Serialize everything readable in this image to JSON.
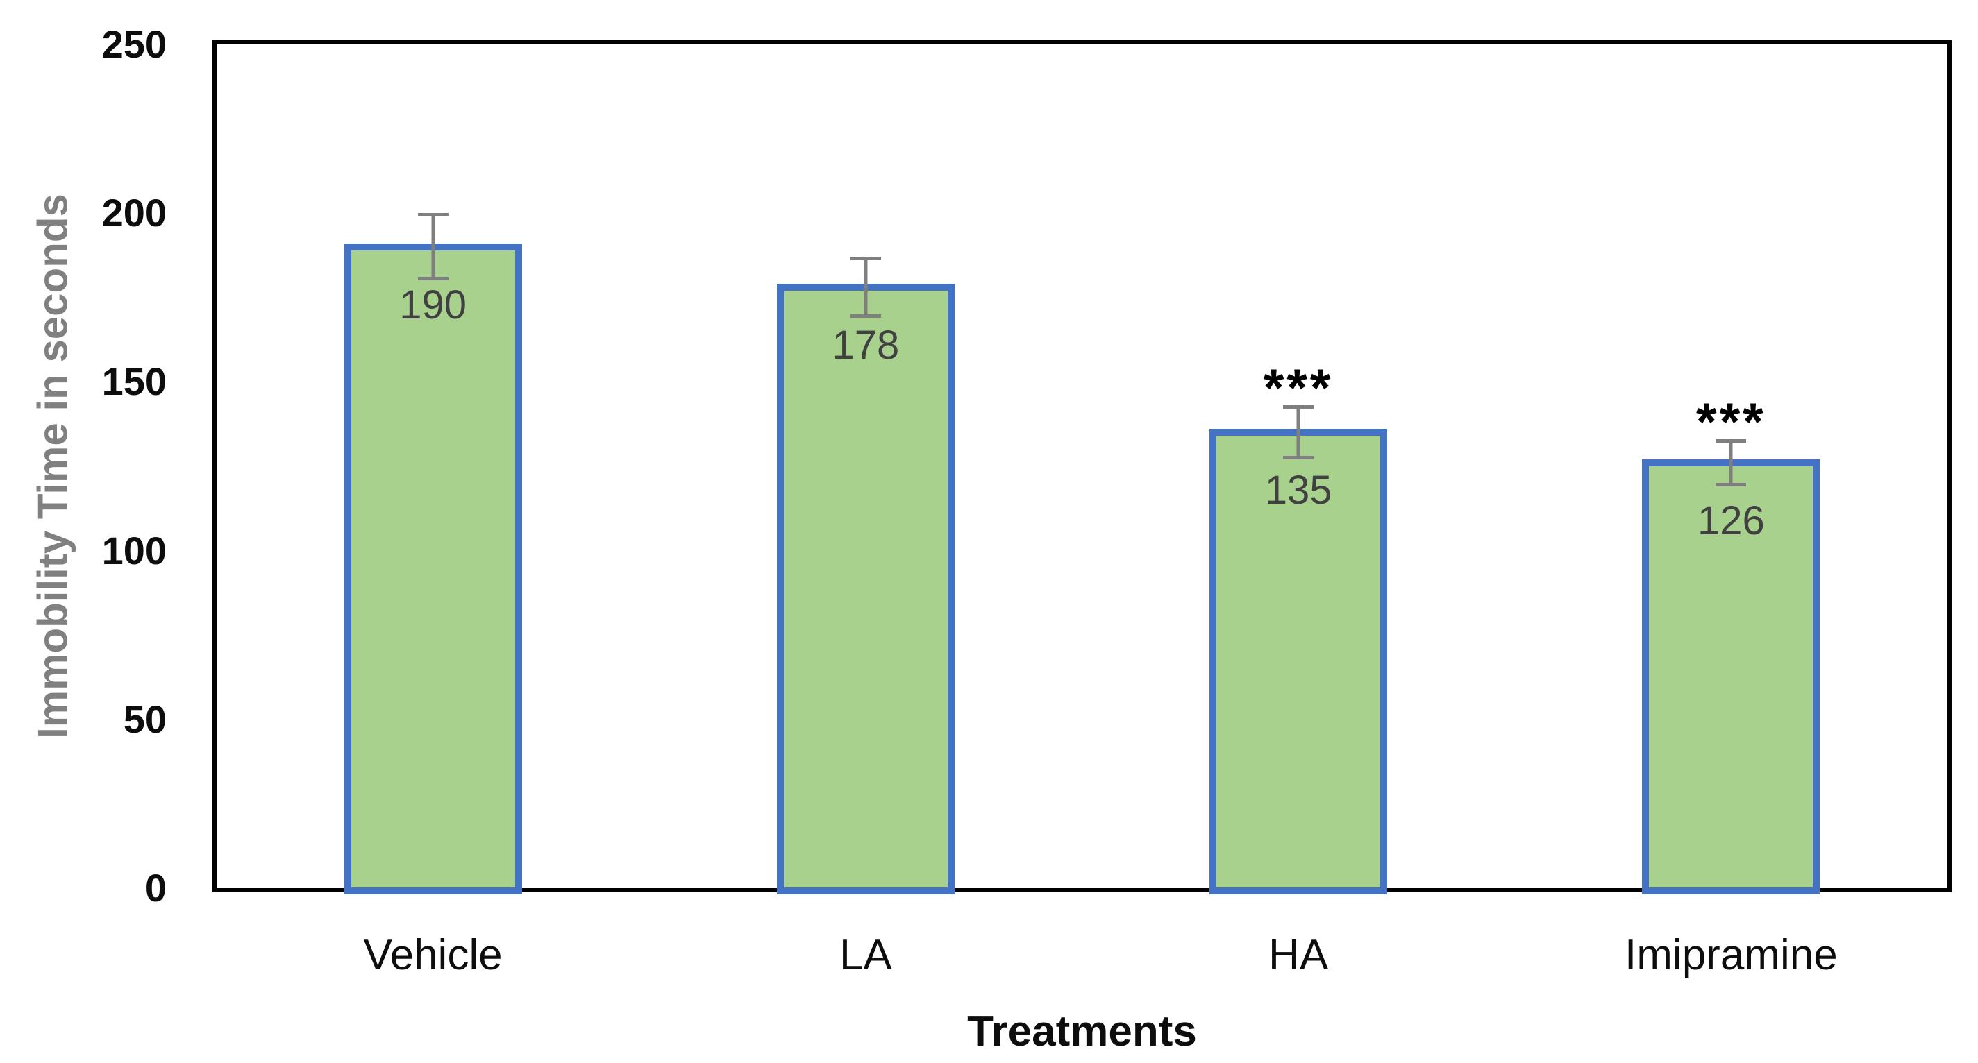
{
  "figure": {
    "background": "#ffffff",
    "frame_color": "#000000"
  },
  "chart_data": {
    "type": "bar",
    "title": "",
    "categories": [
      "Vehicle",
      "LA",
      "HA",
      "Imipramine"
    ],
    "values": [
      190,
      178,
      135,
      126
    ],
    "data_labels": [
      "190",
      "178",
      "135",
      "126"
    ],
    "error_bars": [
      10,
      9,
      8,
      7
    ],
    "significance": [
      "",
      "",
      "***",
      "***"
    ],
    "xlabel": "Treatments",
    "ylabel": "Immobility Time in seconds",
    "ylim": [
      0,
      250
    ],
    "yticks": [
      0,
      50,
      100,
      150,
      200,
      250
    ],
    "grid": false,
    "legend": false,
    "bar_fill": "#A9D18E",
    "bar_border": "#4472C4",
    "error_color": "#7F7F7F",
    "data_label_color": "#404040",
    "tick_label_color": "#0d0d0d",
    "ylabel_color": "#808080",
    "sig_color": "#000000"
  }
}
